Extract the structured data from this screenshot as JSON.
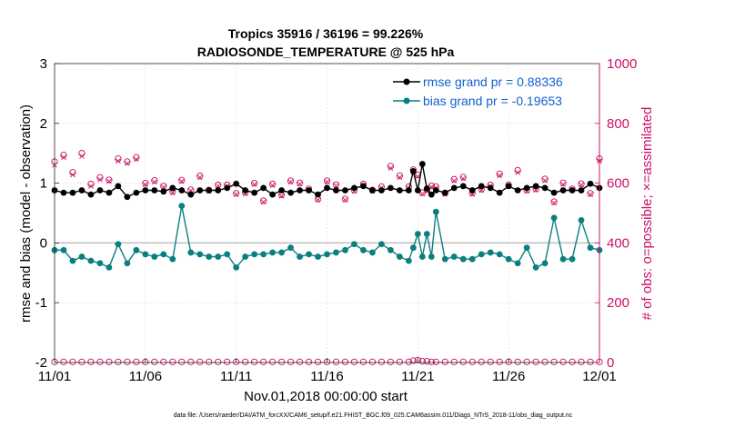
{
  "chart_data": {
    "type": "line",
    "title": "Tropics 35916 / 36196 = 99.226%",
    "subtitle": "RADIOSONDE_TEMPERATURE @ 525 hPa",
    "xlabel": "Nov.01,2018 00:00:00 start",
    "ylabel_left": "rmse and bias (model - observation)",
    "ylabel_right": "# of obs: o=possible; ×=assimilated",
    "footnote": "data file: /Users/raeder/DAI/ATM_forcXX/CAM6_setup/f.e21.FHIST_BGC.f09_025.CAM6assim.011/Diags_NTrS_2018-11/obs_diag_output.nc",
    "x_tick_labels": [
      "11/01",
      "11/06",
      "11/11",
      "11/16",
      "11/21",
      "11/26",
      "12/01"
    ],
    "x_tick_days": [
      0,
      5,
      10,
      15,
      20,
      25,
      30
    ],
    "xlim": [
      0,
      30
    ],
    "ylim_left": [
      -2,
      3
    ],
    "ylim_right": [
      0,
      1000
    ],
    "y_left_ticks": [
      "-2",
      "-1",
      "0",
      "1",
      "2",
      "3"
    ],
    "y_right_ticks": [
      "0",
      "200",
      "400",
      "600",
      "800",
      "1000"
    ],
    "colors": {
      "rmse": "#000000",
      "bias": "#0a7f7f",
      "obs": "#cc1166",
      "zero": "#bfbfbf"
    },
    "legend": {
      "position": "top-right",
      "rmse_label": "rmse grand pr = 0.88336",
      "bias_label": "bias grand pr = -0.19653"
    },
    "series": [
      {
        "name": "rmse",
        "axis": "left",
        "x": [
          0.0,
          0.5,
          1.0,
          1.5,
          2.0,
          2.5,
          3.0,
          3.5,
          4.0,
          4.5,
          5.0,
          5.5,
          6.0,
          6.5,
          7.0,
          7.5,
          8.0,
          8.5,
          9.0,
          9.5,
          10.0,
          10.5,
          11.0,
          11.5,
          12.0,
          12.5,
          13.0,
          13.5,
          14.0,
          14.5,
          15.0,
          15.5,
          16.0,
          16.5,
          17.0,
          17.5,
          18.0,
          18.5,
          19.0,
          19.5,
          19.75,
          20.0,
          20.25,
          20.5,
          20.75,
          21.0,
          21.5,
          22.0,
          22.5,
          23.0,
          23.5,
          24.0,
          24.5,
          25.0,
          25.5,
          26.0,
          26.5,
          27.0,
          27.5,
          28.0,
          28.5,
          29.0,
          29.5,
          30.0
        ],
        "values": [
          0.88,
          0.84,
          0.84,
          0.88,
          0.81,
          0.88,
          0.84,
          0.95,
          0.77,
          0.84,
          0.88,
          0.88,
          0.86,
          0.92,
          0.88,
          0.81,
          0.88,
          0.88,
          0.88,
          0.92,
          0.99,
          0.88,
          0.84,
          0.92,
          0.81,
          0.88,
          0.84,
          0.88,
          0.88,
          0.81,
          0.92,
          0.88,
          0.88,
          0.92,
          0.95,
          0.88,
          0.88,
          0.92,
          0.88,
          0.88,
          1.2,
          0.88,
          1.32,
          0.91,
          0.81,
          0.88,
          0.84,
          0.92,
          0.95,
          0.88,
          0.95,
          0.92,
          0.84,
          0.95,
          0.88,
          0.92,
          0.95,
          0.92,
          0.84,
          0.88,
          0.88,
          0.88,
          0.99,
          0.92
        ]
      },
      {
        "name": "bias",
        "axis": "left",
        "x": [
          0.0,
          0.5,
          1.0,
          1.5,
          2.0,
          2.5,
          3.0,
          3.5,
          4.0,
          4.5,
          5.0,
          5.5,
          6.0,
          6.5,
          7.0,
          7.5,
          8.0,
          8.5,
          9.0,
          9.5,
          10.0,
          10.5,
          11.0,
          11.5,
          12.0,
          12.5,
          13.0,
          13.5,
          14.0,
          14.5,
          15.0,
          15.5,
          16.0,
          16.5,
          17.0,
          17.5,
          18.0,
          18.5,
          19.0,
          19.5,
          19.75,
          20.0,
          20.25,
          20.5,
          20.75,
          21.0,
          21.5,
          22.0,
          22.5,
          23.0,
          23.5,
          24.0,
          24.5,
          25.0,
          25.5,
          26.0,
          26.5,
          27.0,
          27.5,
          28.0,
          28.5,
          29.0,
          29.5,
          30.0
        ],
        "values": [
          -0.12,
          -0.12,
          -0.3,
          -0.23,
          -0.3,
          -0.34,
          -0.41,
          -0.02,
          -0.34,
          -0.12,
          -0.19,
          -0.23,
          -0.19,
          -0.27,
          0.62,
          -0.16,
          -0.19,
          -0.23,
          -0.23,
          -0.19,
          -0.41,
          -0.23,
          -0.19,
          -0.19,
          -0.16,
          -0.16,
          -0.08,
          -0.23,
          -0.19,
          -0.23,
          -0.19,
          -0.16,
          -0.12,
          -0.02,
          -0.12,
          -0.16,
          -0.02,
          -0.12,
          -0.23,
          -0.3,
          -0.08,
          0.15,
          -0.23,
          0.15,
          -0.23,
          0.52,
          -0.27,
          -0.23,
          -0.27,
          -0.27,
          -0.19,
          -0.16,
          -0.19,
          -0.27,
          -0.34,
          -0.08,
          -0.41,
          -0.34,
          0.42,
          -0.27,
          -0.27,
          0.38,
          -0.08,
          -0.12
        ]
      },
      {
        "name": "obs_possible",
        "axis": "right",
        "x": [
          0.0,
          0.5,
          1.0,
          1.5,
          2.0,
          2.5,
          3.0,
          3.5,
          4.0,
          4.5,
          5.0,
          5.5,
          6.0,
          6.5,
          7.0,
          7.5,
          8.0,
          8.5,
          9.0,
          9.5,
          10.0,
          10.5,
          11.0,
          11.5,
          12.0,
          12.5,
          13.0,
          13.5,
          14.0,
          14.5,
          15.0,
          15.5,
          16.0,
          16.5,
          17.0,
          17.5,
          18.0,
          18.5,
          19.0,
          19.5,
          19.75,
          20.0,
          20.25,
          20.5,
          20.75,
          21.0,
          21.5,
          22.0,
          22.5,
          23.0,
          23.5,
          24.0,
          24.5,
          25.0,
          25.5,
          26.0,
          26.5,
          27.0,
          27.5,
          28.0,
          28.5,
          29.0,
          29.5,
          30.0
        ],
        "values": [
          672,
          694,
          636,
          700,
          597,
          619,
          611,
          682,
          672,
          686,
          600,
          609,
          590,
          572,
          610,
          578,
          624,
          577,
          594,
          594,
          566,
          569,
          600,
          541,
          597,
          561,
          608,
          601,
          581,
          547,
          608,
          595,
          547,
          577,
          597,
          577,
          588,
          657,
          625,
          588,
          645,
          628,
          568,
          578,
          591,
          588,
          567,
          613,
          620,
          567,
          580,
          594,
          631,
          594,
          643,
          577,
          581,
          614,
          538,
          601,
          581,
          598,
          566,
          682
        ]
      },
      {
        "name": "obs_assimilated",
        "axis": "right",
        "x": [
          0.0,
          0.5,
          1.0,
          1.5,
          2.0,
          2.5,
          3.0,
          3.5,
          4.0,
          4.5,
          5.0,
          5.5,
          6.0,
          6.5,
          7.0,
          7.5,
          8.0,
          8.5,
          9.0,
          9.5,
          10.0,
          10.5,
          11.0,
          11.5,
          12.0,
          12.5,
          13.0,
          13.5,
          14.0,
          14.5,
          15.0,
          15.5,
          16.0,
          16.5,
          17.0,
          17.5,
          18.0,
          18.5,
          19.0,
          19.5,
          19.75,
          20.0,
          20.25,
          20.5,
          20.75,
          21.0,
          21.5,
          22.0,
          22.5,
          23.0,
          23.5,
          24.0,
          24.5,
          25.0,
          25.5,
          26.0,
          26.5,
          27.0,
          27.5,
          28.0,
          28.5,
          29.0,
          29.5,
          30.0
        ],
        "values": [
          660,
          686,
          628,
          690,
          590,
          612,
          606,
          674,
          666,
          680,
          595,
          604,
          586,
          568,
          606,
          575,
          619,
          573,
          590,
          590,
          562,
          565,
          596,
          537,
          593,
          557,
          604,
          597,
          578,
          544,
          604,
          591,
          544,
          573,
          593,
          573,
          584,
          650,
          619,
          584,
          638,
          622,
          564,
          574,
          587,
          584,
          563,
          608,
          615,
          563,
          576,
          590,
          625,
          590,
          636,
          573,
          577,
          609,
          534,
          596,
          577,
          594,
          562,
          674
        ]
      },
      {
        "name": "obs_bottom_possible",
        "axis": "right",
        "x": [
          0.0,
          0.5,
          1.0,
          1.5,
          2.0,
          2.5,
          3.0,
          3.5,
          4.0,
          4.5,
          5.0,
          5.5,
          6.0,
          6.5,
          7.0,
          7.5,
          8.0,
          8.5,
          9.0,
          9.5,
          10.0,
          10.5,
          11.0,
          11.5,
          12.0,
          12.5,
          13.0,
          13.5,
          14.0,
          14.5,
          15.0,
          15.5,
          16.0,
          16.5,
          17.0,
          17.5,
          18.0,
          18.5,
          19.0,
          19.5,
          19.75,
          20.0,
          20.25,
          20.5,
          20.75,
          21.0,
          21.5,
          22.0,
          22.5,
          23.0,
          23.5,
          24.0,
          24.5,
          25.0,
          25.5,
          26.0,
          26.5,
          27.0,
          27.5,
          28.0,
          28.5,
          29.0,
          29.5,
          30.0
        ],
        "values": [
          2,
          2,
          2,
          2,
          2,
          2,
          2,
          2,
          2,
          2,
          2,
          2,
          2,
          2,
          2,
          2,
          2,
          2,
          2,
          2,
          2,
          2,
          2,
          2,
          2,
          2,
          2,
          2,
          2,
          2,
          2,
          2,
          2,
          2,
          2,
          2,
          2,
          2,
          2,
          2,
          6,
          8,
          4,
          4,
          2,
          2,
          2,
          2,
          2,
          2,
          2,
          2,
          2,
          2,
          2,
          2,
          2,
          2,
          2,
          2,
          2,
          2,
          2,
          2
        ]
      }
    ]
  }
}
